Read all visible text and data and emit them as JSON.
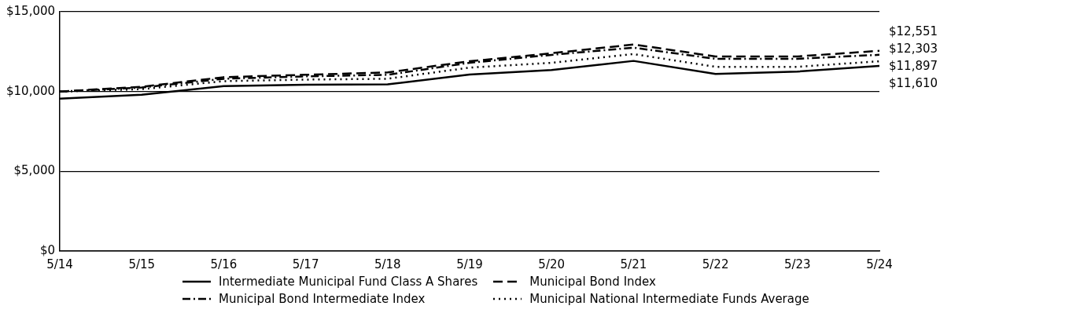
{
  "chart_data": {
    "type": "line",
    "categories": [
      "5/14",
      "5/15",
      "5/16",
      "5/17",
      "5/18",
      "5/19",
      "5/20",
      "5/21",
      "5/22",
      "5/23",
      "5/24"
    ],
    "series": [
      {
        "name": "Intermediate Municipal Fund Class A Shares",
        "color": "#000000",
        "line_style": "solid",
        "values": [
          9550,
          9800,
          10340,
          10430,
          10450,
          11060,
          11350,
          11920,
          11100,
          11250,
          11610
        ]
      },
      {
        "name": "Municipal Bond Index",
        "color": "#000000",
        "line_style": "dashed",
        "values": [
          10000,
          10300,
          10900,
          11050,
          11200,
          11900,
          12400,
          12950,
          12200,
          12200,
          12551
        ]
      },
      {
        "name": "Municipal Bond Intermediate Index",
        "color": "#000000",
        "line_style": "dashdot",
        "values": [
          10000,
          10250,
          10800,
          10950,
          11050,
          11800,
          12300,
          12750,
          12050,
          12050,
          12303
        ]
      },
      {
        "name": "Municipal National Intermediate Funds Average",
        "color": "#000000",
        "line_style": "dotted",
        "values": [
          10000,
          10150,
          10650,
          10750,
          10800,
          11500,
          11800,
          12350,
          11550,
          11550,
          11897
        ]
      }
    ],
    "ylim": [
      0,
      15000
    ],
    "yticks": [
      {
        "value": 0,
        "label": "$0"
      },
      {
        "value": 5000,
        "label": "$5,000"
      },
      {
        "value": 10000,
        "label": "$10,000"
      },
      {
        "value": 15000,
        "label": "$15,000"
      }
    ],
    "grid": "y",
    "legend": "bottom",
    "marker": "none",
    "annotations": [
      {
        "text": "$12,551",
        "x": "5/24",
        "y": 12551
      },
      {
        "text": "$12,303",
        "x": "5/24",
        "y": 12303
      },
      {
        "text": "$11,897",
        "x": "5/24",
        "y": 11897
      },
      {
        "text": "$11,610",
        "x": "5/24",
        "y": 11610
      }
    ]
  }
}
